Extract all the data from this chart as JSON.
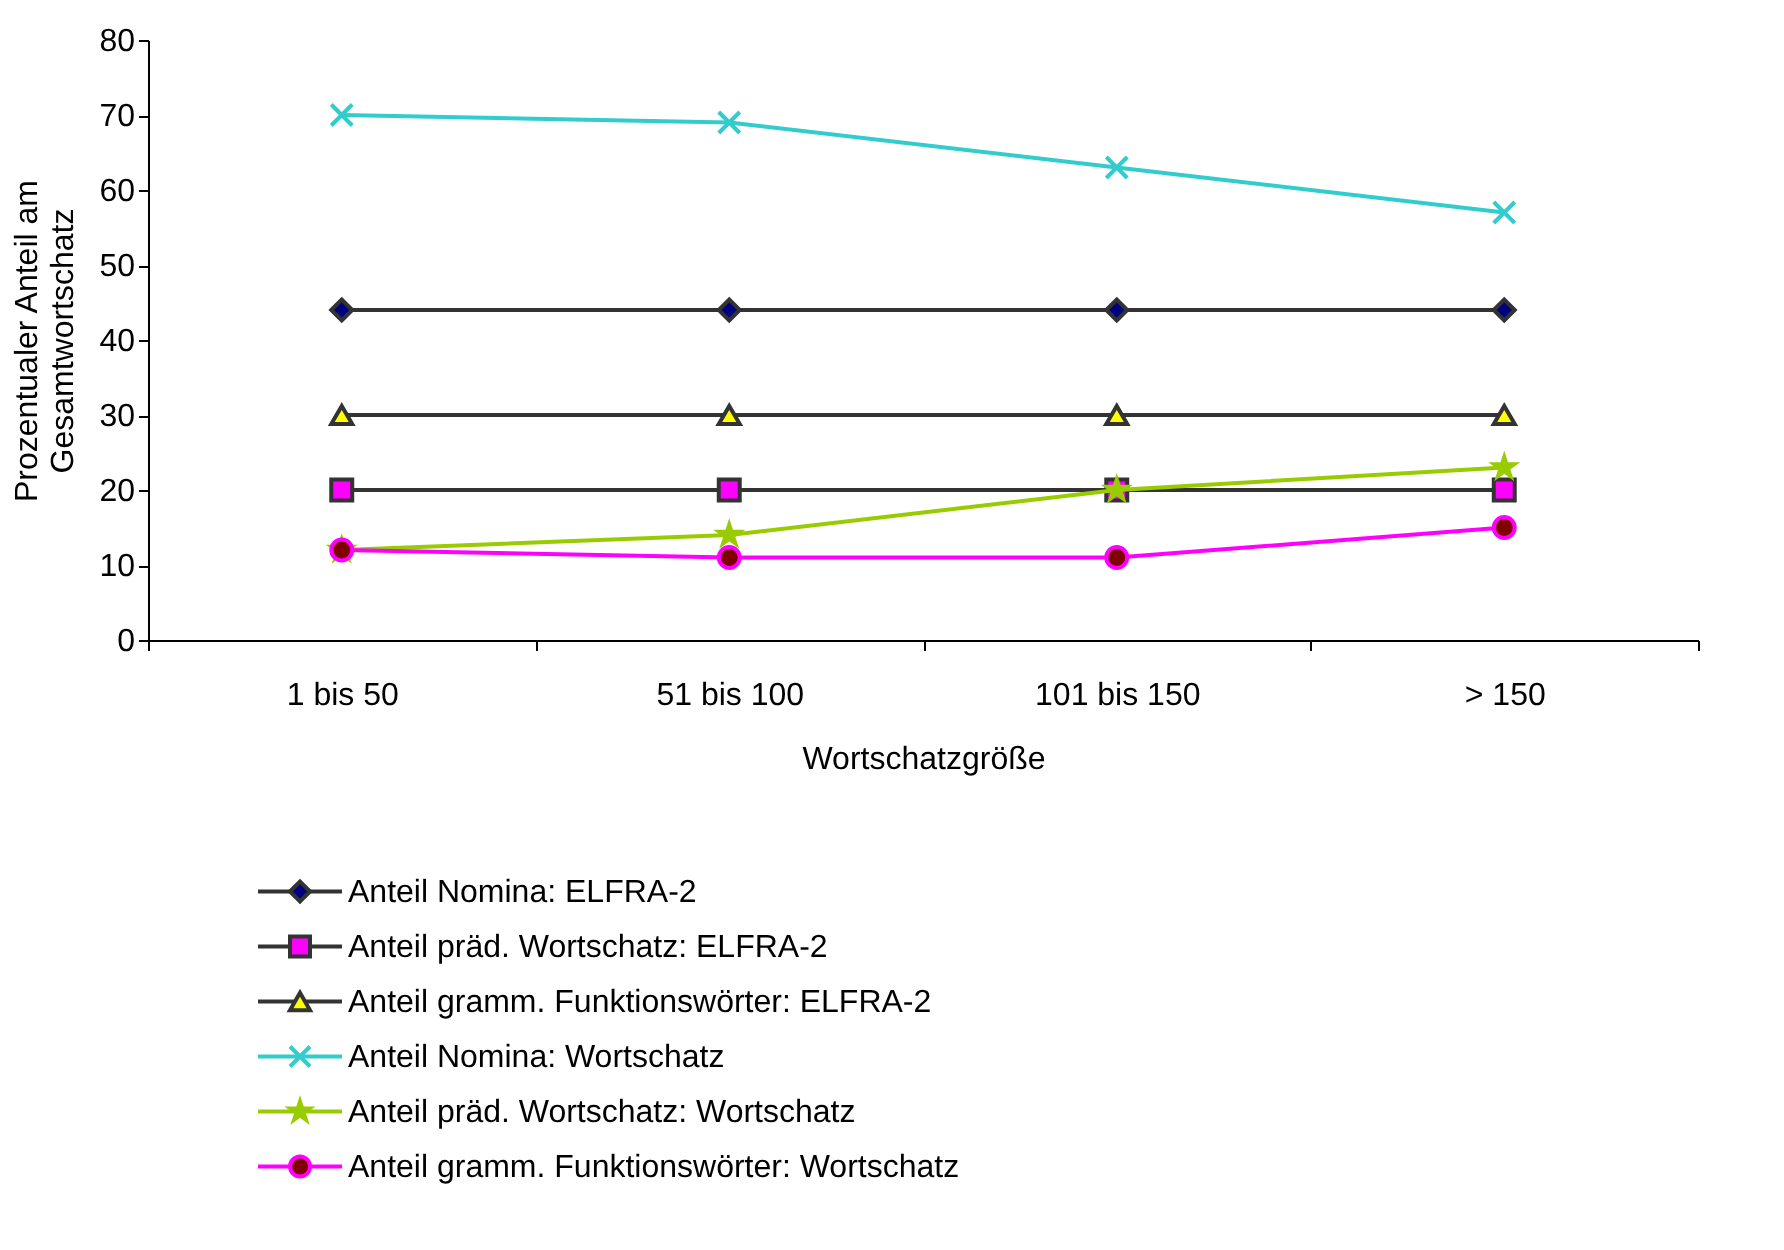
{
  "chart_data": {
    "type": "line",
    "xlabel": "Wortschatzgröße",
    "ylabel": "Prozentualer Anteil am\nGesamtwortschatz",
    "categories": [
      "1 bis 50",
      "51 bis 100",
      "101 bis 150",
      "> 150"
    ],
    "ylim": [
      0,
      80
    ],
    "yticks": [
      0,
      10,
      20,
      30,
      40,
      50,
      60,
      70,
      80
    ],
    "grid": false,
    "legend": "bottom",
    "series": [
      {
        "name": "Anteil Nomina: ELFRA-2",
        "color": "#333333",
        "colors": [
          "#000080",
          "#000080",
          "#000080",
          "#000080"
        ],
        "marker": "diamond",
        "values": [
          44,
          44,
          44,
          44
        ]
      },
      {
        "name": "Anteil präd. Wortschatz: ELFRA-2",
        "color": "#333333",
        "colors": [
          "#ff00ff",
          "#ff00ff",
          "#ff00ff",
          "#ff00ff"
        ],
        "marker": "square",
        "values": [
          20,
          20,
          20,
          20
        ]
      },
      {
        "name": "Anteil gramm. Funktionswörter: ELFRA-2",
        "color": "#333333",
        "colors": [
          "#ffff00",
          "#ffff00",
          "#ffff00",
          "#ffff00"
        ],
        "marker": "triangle",
        "values": [
          30,
          30,
          30,
          30
        ]
      },
      {
        "name": "Anteil Nomina: Wortschatz",
        "color": "#33cccc",
        "marker": "cross",
        "values": [
          70,
          69,
          63,
          57
        ]
      },
      {
        "name": "Anteil präd. Wortschatz: Wortschatz",
        "color": "#99cc00",
        "marker": "star",
        "values": [
          12,
          14,
          20,
          23
        ]
      },
      {
        "name": "Anteil gramm. Funktionswörter: Wortschatz",
        "color": "#ff00ff",
        "colors": [
          "#800000",
          "#800000",
          "#800000",
          "#800000"
        ],
        "marker": "circle",
        "values": [
          12,
          11,
          11,
          15
        ]
      }
    ]
  }
}
